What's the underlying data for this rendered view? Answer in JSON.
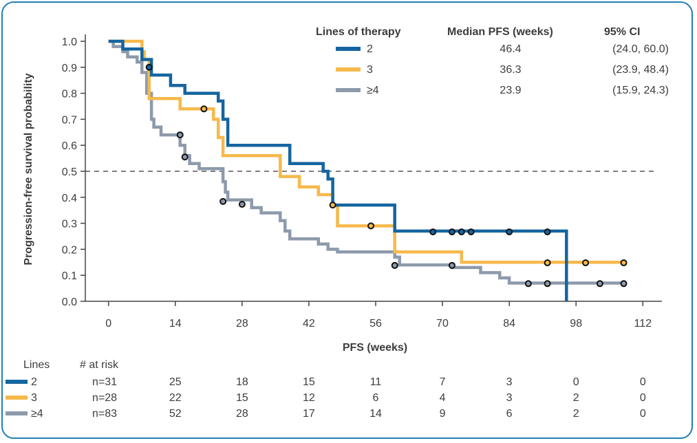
{
  "chart_data": {
    "type": "line",
    "step": true,
    "xlabel": "PFS (weeks)",
    "ylabel": "Progression-free survival probability",
    "xlim": [
      -4,
      116
    ],
    "ylim": [
      0,
      1.0
    ],
    "x_ticks": [
      0,
      14,
      28,
      42,
      56,
      70,
      84,
      98,
      112
    ],
    "y_ticks": [
      0.0,
      0.1,
      0.2,
      0.3,
      0.4,
      0.5,
      0.6,
      0.7,
      0.8,
      0.9,
      1.0
    ],
    "y_tick_labels": [
      "0.0",
      "0.1",
      "0.2",
      "0.3",
      "0.4",
      "0.5",
      "0.6",
      "0.7",
      "0.8",
      "0.9",
      "1.0"
    ],
    "reference_line": {
      "y": 0.5,
      "style": "dashed",
      "color": "#555555"
    },
    "legend": {
      "headers": [
        "Lines of therapy",
        "Median PFS (weeks)",
        "95% CI"
      ],
      "placement": "top-right"
    },
    "series": [
      {
        "name": "2",
        "color": "#1565a0",
        "median_pfs": "46.4",
        "ci": "(24.0, 60.0)",
        "steps": [
          [
            0,
            1.0
          ],
          [
            3,
            1.0
          ],
          [
            3,
            0.97
          ],
          [
            7,
            0.97
          ],
          [
            7,
            0.93
          ],
          [
            9,
            0.93
          ],
          [
            9,
            0.87
          ],
          [
            13,
            0.87
          ],
          [
            13,
            0.83
          ],
          [
            16,
            0.83
          ],
          [
            16,
            0.8
          ],
          [
            23,
            0.8
          ],
          [
            23,
            0.77
          ],
          [
            24,
            0.77
          ],
          [
            24,
            0.7
          ],
          [
            25,
            0.7
          ],
          [
            25,
            0.6
          ],
          [
            38,
            0.6
          ],
          [
            38,
            0.57
          ],
          [
            38,
            0.57
          ],
          [
            38,
            0.53
          ],
          [
            45,
            0.53
          ],
          [
            45,
            0.5
          ],
          [
            46,
            0.5
          ],
          [
            46,
            0.47
          ],
          [
            47,
            0.47
          ],
          [
            47,
            0.37
          ],
          [
            60,
            0.37
          ],
          [
            60,
            0.33
          ],
          [
            60,
            0.33
          ],
          [
            60,
            0.27
          ],
          [
            96,
            0.27
          ],
          [
            96,
            0.0
          ]
        ],
        "censored": [
          [
            8.5,
            0.9
          ],
          [
            68,
            0.267
          ],
          [
            72,
            0.267
          ],
          [
            74,
            0.267
          ],
          [
            76,
            0.267
          ],
          [
            84,
            0.267
          ],
          [
            92,
            0.267
          ]
        ]
      },
      {
        "name": "3",
        "color": "#f6b94b",
        "median_pfs": "36.3",
        "ci": "(23.9, 48.4)",
        "steps": [
          [
            0,
            1.0
          ],
          [
            7,
            1.0
          ],
          [
            7,
            0.96
          ],
          [
            7.5,
            0.96
          ],
          [
            7.5,
            0.93
          ],
          [
            8.5,
            0.93
          ],
          [
            8.5,
            0.78
          ],
          [
            15,
            0.78
          ],
          [
            15,
            0.74
          ],
          [
            22,
            0.74
          ],
          [
            22,
            0.7
          ],
          [
            23,
            0.7
          ],
          [
            23,
            0.63
          ],
          [
            24,
            0.63
          ],
          [
            24,
            0.56
          ],
          [
            36,
            0.56
          ],
          [
            36,
            0.48
          ],
          [
            40,
            0.48
          ],
          [
            40,
            0.44
          ],
          [
            44,
            0.44
          ],
          [
            44,
            0.41
          ],
          [
            47,
            0.41
          ],
          [
            47,
            0.37
          ],
          [
            48,
            0.37
          ],
          [
            48,
            0.29
          ],
          [
            60,
            0.29
          ],
          [
            60,
            0.19
          ],
          [
            74,
            0.19
          ],
          [
            74,
            0.15
          ],
          [
            108,
            0.15
          ]
        ],
        "censored": [
          [
            20,
            0.74
          ],
          [
            47,
            0.37
          ],
          [
            55,
            0.29
          ],
          [
            92,
            0.148
          ],
          [
            100,
            0.148
          ],
          [
            108,
            0.148
          ]
        ]
      },
      {
        "name": "≥4",
        "color": "#8d9aab",
        "median_pfs": "23.9",
        "ci": "(15.9, 24.3)",
        "steps": [
          [
            0,
            1.0
          ],
          [
            1,
            1.0
          ],
          [
            1,
            0.98
          ],
          [
            3,
            0.98
          ],
          [
            3,
            0.96
          ],
          [
            4,
            0.96
          ],
          [
            4,
            0.94
          ],
          [
            6,
            0.94
          ],
          [
            6,
            0.92
          ],
          [
            7,
            0.92
          ],
          [
            7,
            0.88
          ],
          [
            8,
            0.88
          ],
          [
            8,
            0.8
          ],
          [
            9,
            0.8
          ],
          [
            9,
            0.7
          ],
          [
            9.5,
            0.7
          ],
          [
            9.5,
            0.67
          ],
          [
            11,
            0.67
          ],
          [
            11,
            0.64
          ],
          [
            15,
            0.64
          ],
          [
            15,
            0.6
          ],
          [
            16,
            0.6
          ],
          [
            16,
            0.56
          ],
          [
            17,
            0.56
          ],
          [
            17,
            0.53
          ],
          [
            19,
            0.53
          ],
          [
            19,
            0.51
          ],
          [
            24,
            0.51
          ],
          [
            24,
            0.46
          ],
          [
            24.5,
            0.46
          ],
          [
            24.5,
            0.42
          ],
          [
            25,
            0.42
          ],
          [
            25,
            0.39
          ],
          [
            30,
            0.39
          ],
          [
            30,
            0.36
          ],
          [
            32,
            0.36
          ],
          [
            32,
            0.34
          ],
          [
            36,
            0.34
          ],
          [
            36,
            0.31
          ],
          [
            37,
            0.31
          ],
          [
            37,
            0.27
          ],
          [
            38,
            0.27
          ],
          [
            38,
            0.24
          ],
          [
            44,
            0.24
          ],
          [
            44,
            0.22
          ],
          [
            46,
            0.22
          ],
          [
            46,
            0.2
          ],
          [
            48,
            0.2
          ],
          [
            48,
            0.19
          ],
          [
            60,
            0.19
          ],
          [
            60,
            0.17
          ],
          [
            61,
            0.17
          ],
          [
            61,
            0.14
          ],
          [
            72,
            0.14
          ],
          [
            72,
            0.13
          ],
          [
            78,
            0.13
          ],
          [
            78,
            0.11
          ],
          [
            82,
            0.11
          ],
          [
            82,
            0.09
          ],
          [
            84,
            0.09
          ],
          [
            84,
            0.07
          ],
          [
            108,
            0.07
          ]
        ],
        "censored": [
          [
            15,
            0.64
          ],
          [
            16,
            0.555
          ],
          [
            24,
            0.384
          ],
          [
            28,
            0.373
          ],
          [
            60,
            0.138
          ],
          [
            72,
            0.138
          ],
          [
            88,
            0.068
          ],
          [
            92,
            0.068
          ],
          [
            103,
            0.068
          ],
          [
            108,
            0.068
          ]
        ]
      }
    ],
    "risk_table": {
      "header_lines": "Lines",
      "header_at_risk": "# at risk",
      "rows": [
        {
          "label": "2",
          "color": "#1565a0",
          "values": [
            "n=31",
            "25",
            "18",
            "15",
            "11",
            "7",
            "3",
            "0",
            "0"
          ]
        },
        {
          "label": "3",
          "color": "#f6b94b",
          "values": [
            "n=28",
            "22",
            "15",
            "12",
            "6",
            "4",
            "3",
            "2",
            "0"
          ]
        },
        {
          "label": "≥4",
          "color": "#8d9aab",
          "values": [
            "n=83",
            "52",
            "28",
            "17",
            "14",
            "9",
            "6",
            "2",
            "0"
          ]
        }
      ]
    }
  }
}
